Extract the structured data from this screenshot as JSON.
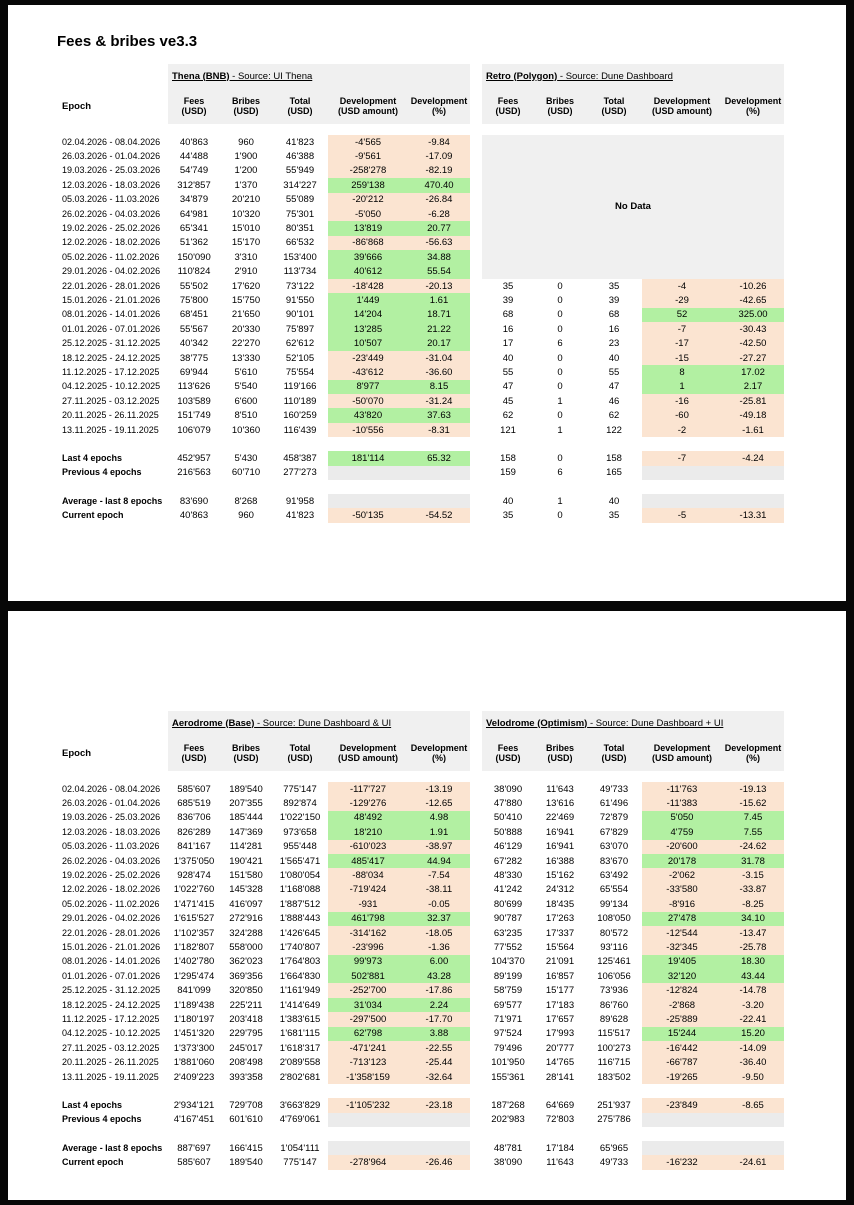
{
  "page_title": "Fees & bribes ve3.3",
  "no_data_label": "No Data",
  "colors": {
    "positive_bg": "#b2f0a2",
    "negative_bg": "#fbe4d1",
    "header_bg": "#f0f0f0",
    "summary_bg": "#ebebeb"
  },
  "column_headers": {
    "epoch": "Epoch",
    "cols": [
      [
        "Fees",
        "(USD)"
      ],
      [
        "Bribes",
        "(USD)"
      ],
      [
        "Total",
        "(USD)"
      ],
      [
        "Development",
        "(USD amount)"
      ],
      [
        "Development",
        "(%)"
      ]
    ]
  },
  "summary_labels": [
    "Last 4 epochs",
    "Previous 4 epochs",
    "Average - last 8 epochs",
    "Current epoch"
  ],
  "epochs": [
    "02.04.2026 - 08.04.2026",
    "26.03.2026 - 01.04.2026",
    "19.03.2026 - 25.03.2026",
    "12.03.2026 - 18.03.2026",
    "05.03.2026 - 11.03.2026",
    "26.02.2026 - 04.03.2026",
    "19.02.2026 - 25.02.2026",
    "12.02.2026 - 18.02.2026",
    "05.02.2026 - 11.02.2026",
    "29.01.2026 - 04.02.2026",
    "22.01.2026 - 28.01.2026",
    "15.01.2026 - 21.01.2026",
    "08.01.2026 - 14.01.2026",
    "01.01.2026 - 07.01.2026",
    "25.12.2025 - 31.12.2025",
    "18.12.2025 - 24.12.2025",
    "11.12.2025 - 17.12.2025",
    "04.12.2025 - 10.12.2025",
    "27.11.2025 - 03.12.2025",
    "20.11.2025 - 26.11.2025",
    "13.11.2025 - 19.11.2025"
  ],
  "panels": [
    {
      "tables": [
        {
          "name": "Thena (BNB)",
          "source": "Source: UI Thena",
          "rows": [
            [
              "40'863",
              "960",
              "41'823",
              "-4'565",
              "-9.84"
            ],
            [
              "44'488",
              "1'900",
              "46'388",
              "-9'561",
              "-17.09"
            ],
            [
              "54'749",
              "1'200",
              "55'949",
              "-258'278",
              "-82.19"
            ],
            [
              "312'857",
              "1'370",
              "314'227",
              "259'138",
              "470.40"
            ],
            [
              "34'879",
              "20'210",
              "55'089",
              "-20'212",
              "-26.84"
            ],
            [
              "64'981",
              "10'320",
              "75'301",
              "-5'050",
              "-6.28"
            ],
            [
              "65'341",
              "15'010",
              "80'351",
              "13'819",
              "20.77"
            ],
            [
              "51'362",
              "15'170",
              "66'532",
              "-86'868",
              "-56.63"
            ],
            [
              "150'090",
              "3'310",
              "153'400",
              "39'666",
              "34.88"
            ],
            [
              "110'824",
              "2'910",
              "113'734",
              "40'612",
              "55.54"
            ],
            [
              "55'502",
              "17'620",
              "73'122",
              "-18'428",
              "-20.13"
            ],
            [
              "75'800",
              "15'750",
              "91'550",
              "1'449",
              "1.61"
            ],
            [
              "68'451",
              "21'650",
              "90'101",
              "14'204",
              "18.71"
            ],
            [
              "55'567",
              "20'330",
              "75'897",
              "13'285",
              "21.22"
            ],
            [
              "40'342",
              "22'270",
              "62'612",
              "10'507",
              "20.17"
            ],
            [
              "38'775",
              "13'330",
              "52'105",
              "-23'449",
              "-31.04"
            ],
            [
              "69'944",
              "5'610",
              "75'554",
              "-43'612",
              "-36.60"
            ],
            [
              "113'626",
              "5'540",
              "119'166",
              "8'977",
              "8.15"
            ],
            [
              "103'589",
              "6'600",
              "110'189",
              "-50'070",
              "-31.24"
            ],
            [
              "151'749",
              "8'510",
              "160'259",
              "43'820",
              "37.63"
            ],
            [
              "106'079",
              "10'360",
              "116'439",
              "-10'556",
              "-8.31"
            ]
          ],
          "summary": [
            [
              "452'957",
              "5'430",
              "458'387",
              "181'114",
              "65.32"
            ],
            [
              "216'563",
              "60'710",
              "277'273",
              "",
              ""
            ],
            [
              "83'690",
              "8'268",
              "91'958",
              "",
              ""
            ],
            [
              "40'863",
              "960",
              "41'823",
              "-50'135",
              "-54.52"
            ]
          ]
        },
        {
          "name": "Retro (Polygon)",
          "source": "Source: Dune Dashboard",
          "no_data_rows": 10,
          "rows": [
            [
              "35",
              "0",
              "35",
              "-4",
              "-10.26"
            ],
            [
              "39",
              "0",
              "39",
              "-29",
              "-42.65"
            ],
            [
              "68",
              "0",
              "68",
              "52",
              "325.00"
            ],
            [
              "16",
              "0",
              "16",
              "-7",
              "-30.43"
            ],
            [
              "17",
              "6",
              "23",
              "-17",
              "-42.50"
            ],
            [
              "40",
              "0",
              "40",
              "-15",
              "-27.27"
            ],
            [
              "55",
              "0",
              "55",
              "8",
              "17.02"
            ],
            [
              "47",
              "0",
              "47",
              "1",
              "2.17"
            ],
            [
              "45",
              "1",
              "46",
              "-16",
              "-25.81"
            ],
            [
              "62",
              "0",
              "62",
              "-60",
              "-49.18"
            ],
            [
              "121",
              "1",
              "122",
              "-2",
              "-1.61"
            ]
          ],
          "summary": [
            [
              "158",
              "0",
              "158",
              "-7",
              "-4.24"
            ],
            [
              "159",
              "6",
              "165",
              "",
              ""
            ],
            [
              "40",
              "1",
              "40",
              "",
              ""
            ],
            [
              "35",
              "0",
              "35",
              "-5",
              "-13.31"
            ]
          ]
        }
      ]
    },
    {
      "tables": [
        {
          "name": "Aerodrome (Base)",
          "source": "Source: Dune Dashboard & UI",
          "rows": [
            [
              "585'607",
              "189'540",
              "775'147",
              "-117'727",
              "-13.19"
            ],
            [
              "685'519",
              "207'355",
              "892'874",
              "-129'276",
              "-12.65"
            ],
            [
              "836'706",
              "185'444",
              "1'022'150",
              "48'492",
              "4.98"
            ],
            [
              "826'289",
              "147'369",
              "973'658",
              "18'210",
              "1.91"
            ],
            [
              "841'167",
              "114'281",
              "955'448",
              "-610'023",
              "-38.97"
            ],
            [
              "1'375'050",
              "190'421",
              "1'565'471",
              "485'417",
              "44.94"
            ],
            [
              "928'474",
              "151'580",
              "1'080'054",
              "-88'034",
              "-7.54"
            ],
            [
              "1'022'760",
              "145'328",
              "1'168'088",
              "-719'424",
              "-38.11"
            ],
            [
              "1'471'415",
              "416'097",
              "1'887'512",
              "-931",
              "-0.05"
            ],
            [
              "1'615'527",
              "272'916",
              "1'888'443",
              "461'798",
              "32.37"
            ],
            [
              "1'102'357",
              "324'288",
              "1'426'645",
              "-314'162",
              "-18.05"
            ],
            [
              "1'182'807",
              "558'000",
              "1'740'807",
              "-23'996",
              "-1.36"
            ],
            [
              "1'402'780",
              "362'023",
              "1'764'803",
              "99'973",
              "6.00"
            ],
            [
              "1'295'474",
              "369'356",
              "1'664'830",
              "502'881",
              "43.28"
            ],
            [
              "841'099",
              "320'850",
              "1'161'949",
              "-252'700",
              "-17.86"
            ],
            [
              "1'189'438",
              "225'211",
              "1'414'649",
              "31'034",
              "2.24"
            ],
            [
              "1'180'197",
              "203'418",
              "1'383'615",
              "-297'500",
              "-17.70"
            ],
            [
              "1'451'320",
              "229'795",
              "1'681'115",
              "62'798",
              "3.88"
            ],
            [
              "1'373'300",
              "245'017",
              "1'618'317",
              "-471'241",
              "-22.55"
            ],
            [
              "1'881'060",
              "208'498",
              "2'089'558",
              "-713'123",
              "-25.44"
            ],
            [
              "2'409'223",
              "393'358",
              "2'802'681",
              "-1'358'159",
              "-32.64"
            ]
          ],
          "summary": [
            [
              "2'934'121",
              "729'708",
              "3'663'829",
              "-1'105'232",
              "-23.18"
            ],
            [
              "4'167'451",
              "601'610",
              "4'769'061",
              "",
              ""
            ],
            [
              "887'697",
              "166'415",
              "1'054'111",
              "",
              ""
            ],
            [
              "585'607",
              "189'540",
              "775'147",
              "-278'964",
              "-26.46"
            ]
          ]
        },
        {
          "name": "Velodrome (Optimism)",
          "source": "Source: Dune Dashboard + UI",
          "rows": [
            [
              "38'090",
              "11'643",
              "49'733",
              "-11'763",
              "-19.13"
            ],
            [
              "47'880",
              "13'616",
              "61'496",
              "-11'383",
              "-15.62"
            ],
            [
              "50'410",
              "22'469",
              "72'879",
              "5'050",
              "7.45"
            ],
            [
              "50'888",
              "16'941",
              "67'829",
              "4'759",
              "7.55"
            ],
            [
              "46'129",
              "16'941",
              "63'070",
              "-20'600",
              "-24.62"
            ],
            [
              "67'282",
              "16'388",
              "83'670",
              "20'178",
              "31.78"
            ],
            [
              "48'330",
              "15'162",
              "63'492",
              "-2'062",
              "-3.15"
            ],
            [
              "41'242",
              "24'312",
              "65'554",
              "-33'580",
              "-33.87"
            ],
            [
              "80'699",
              "18'435",
              "99'134",
              "-8'916",
              "-8.25"
            ],
            [
              "90'787",
              "17'263",
              "108'050",
              "27'478",
              "34.10"
            ],
            [
              "63'235",
              "17'337",
              "80'572",
              "-12'544",
              "-13.47"
            ],
            [
              "77'552",
              "15'564",
              "93'116",
              "-32'345",
              "-25.78"
            ],
            [
              "104'370",
              "21'091",
              "125'461",
              "19'405",
              "18.30"
            ],
            [
              "89'199",
              "16'857",
              "106'056",
              "32'120",
              "43.44"
            ],
            [
              "58'759",
              "15'177",
              "73'936",
              "-12'824",
              "-14.78"
            ],
            [
              "69'577",
              "17'183",
              "86'760",
              "-2'868",
              "-3.20"
            ],
            [
              "71'971",
              "17'657",
              "89'628",
              "-25'889",
              "-22.41"
            ],
            [
              "97'524",
              "17'993",
              "115'517",
              "15'244",
              "15.20"
            ],
            [
              "79'496",
              "20'777",
              "100'273",
              "-16'442",
              "-14.09"
            ],
            [
              "101'950",
              "14'765",
              "116'715",
              "-66'787",
              "-36.40"
            ],
            [
              "155'361",
              "28'141",
              "183'502",
              "-19'265",
              "-9.50"
            ]
          ],
          "summary": [
            [
              "187'268",
              "64'669",
              "251'937",
              "-23'849",
              "-8.65"
            ],
            [
              "202'983",
              "72'803",
              "275'786",
              "",
              ""
            ],
            [
              "48'781",
              "17'184",
              "65'965",
              "",
              ""
            ],
            [
              "38'090",
              "11'643",
              "49'733",
              "-16'232",
              "-24.61"
            ]
          ]
        }
      ]
    }
  ]
}
